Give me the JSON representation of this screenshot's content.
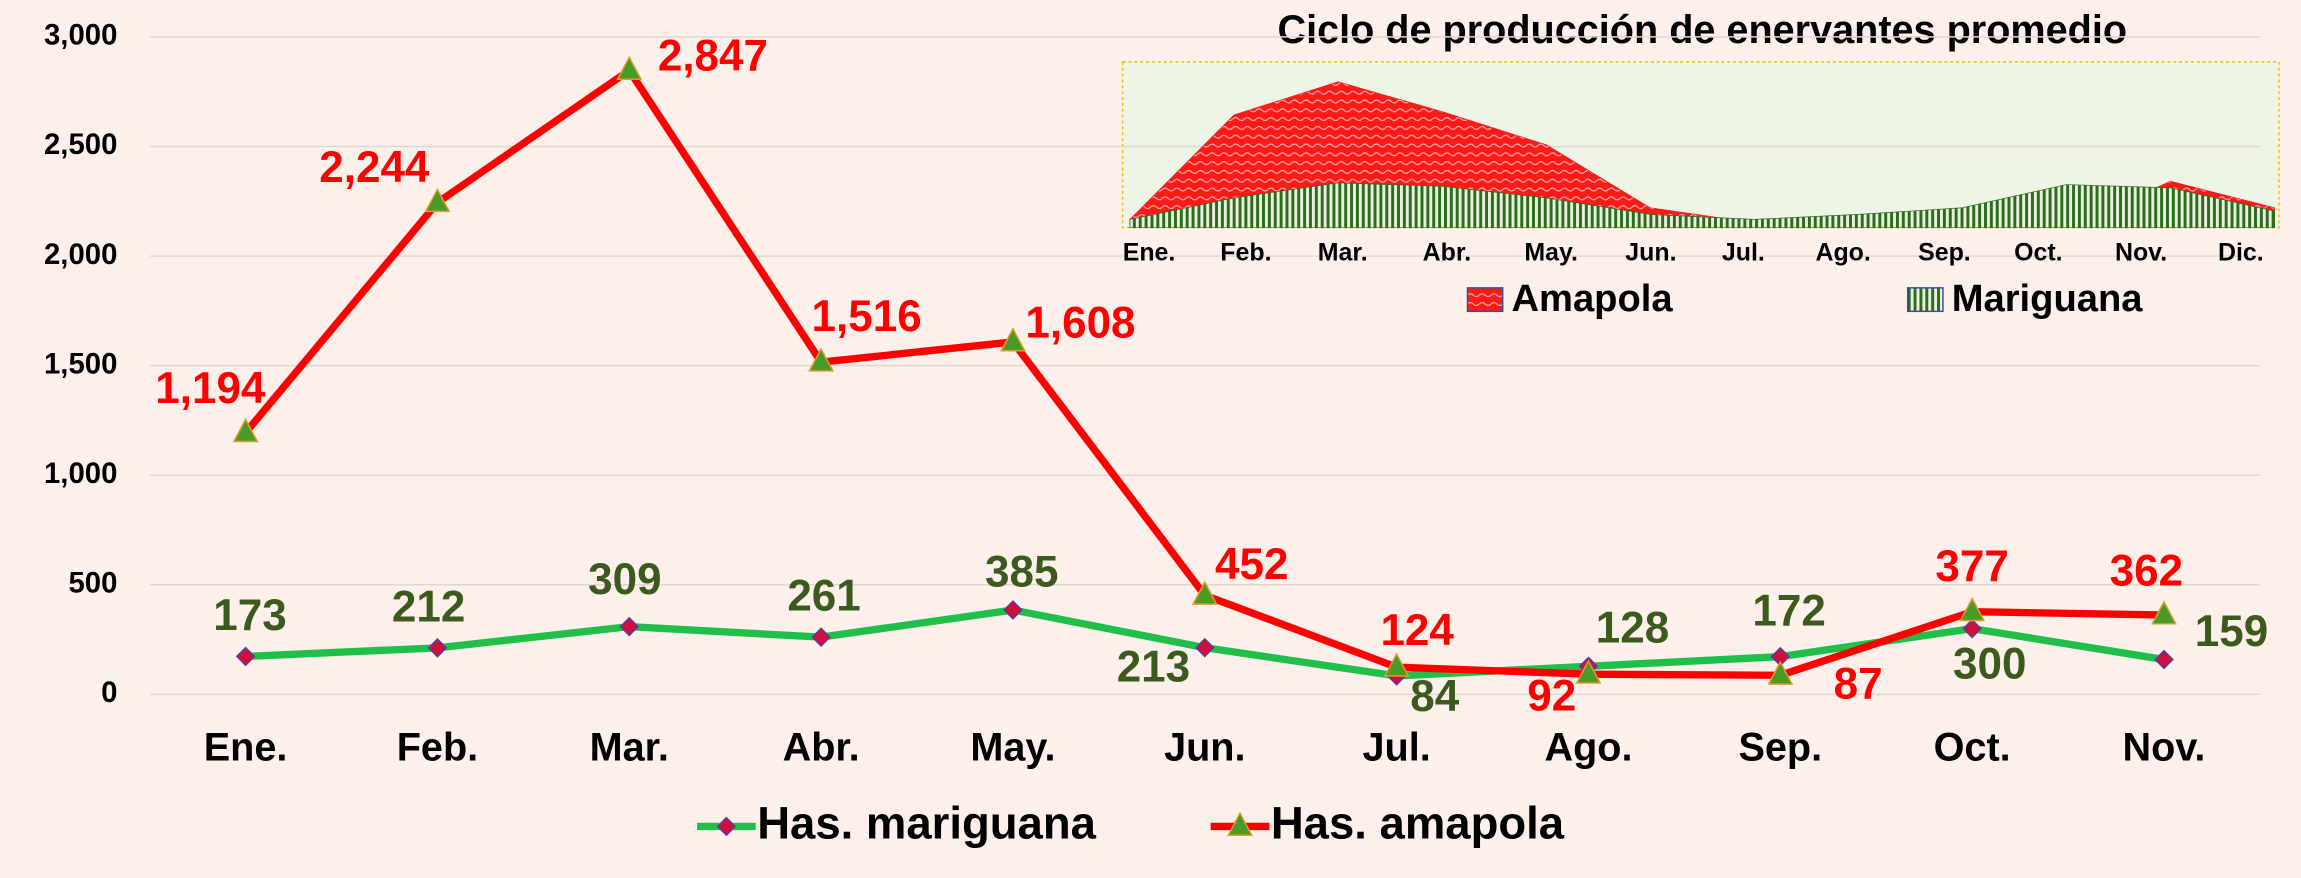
{
  "chart_data": [
    {
      "type": "line",
      "categories": [
        "Ene.",
        "Feb.",
        "Mar.",
        "Abr.",
        "May.",
        "Jun.",
        "Jul.",
        "Ago.",
        "Sep.",
        "Oct.",
        "Nov."
      ],
      "series": [
        {
          "name": "Has. mariguana",
          "color": "#1fbf4a",
          "marker_color": "#d0103a",
          "label_color": "#3d5a1e",
          "values": [
            173,
            212,
            309,
            261,
            385,
            213,
            84,
            128,
            172,
            300,
            159
          ]
        },
        {
          "name": "Has. amapola",
          "color": "#ff0000",
          "marker_color": "#4a9a2a",
          "label_color": "#ff0000",
          "values": [
            1194,
            2244,
            2847,
            1516,
            1608,
            452,
            124,
            92,
            87,
            377,
            362
          ],
          "value_labels": [
            "1,194",
            "2,244",
            "2,847",
            "1,516",
            "1,608",
            "452",
            "124",
            "92",
            "87",
            "377",
            "362"
          ]
        }
      ],
      "ylim": [
        0,
        3000
      ],
      "yticks": [
        0,
        500,
        {
          "value": 1000,
          "label": "1,000"
        },
        {
          "value": 1500,
          "label": "1,500"
        },
        {
          "value": 2000,
          "label": "2,000"
        },
        {
          "value": 2500,
          "label": "2,500"
        },
        {
          "value": 3000,
          "label": "3,000"
        }
      ],
      "grid": true
    },
    {
      "type": "area",
      "title": "Ciclo de producción de enervantes promedio",
      "categories": [
        "Ene.",
        "Feb.",
        "Mar.",
        "Abr.",
        "May.",
        "Jun.",
        "Jul.",
        "Ago.",
        "Sep.",
        "Oct.",
        "Nov.",
        "Dic."
      ],
      "series": [
        {
          "name": "Amapola",
          "color": "#ff1a1a",
          "values": [
            5,
            68,
            88,
            70,
            50,
            12,
            3,
            0,
            0,
            0,
            28,
            12
          ]
        },
        {
          "name": "Mariguana",
          "color": "#2e6b1f",
          "values": [
            5,
            18,
            27,
            25,
            18,
            8,
            5,
            8,
            12,
            26,
            24,
            10
          ]
        }
      ],
      "ylim": [
        0,
        100
      ]
    }
  ]
}
